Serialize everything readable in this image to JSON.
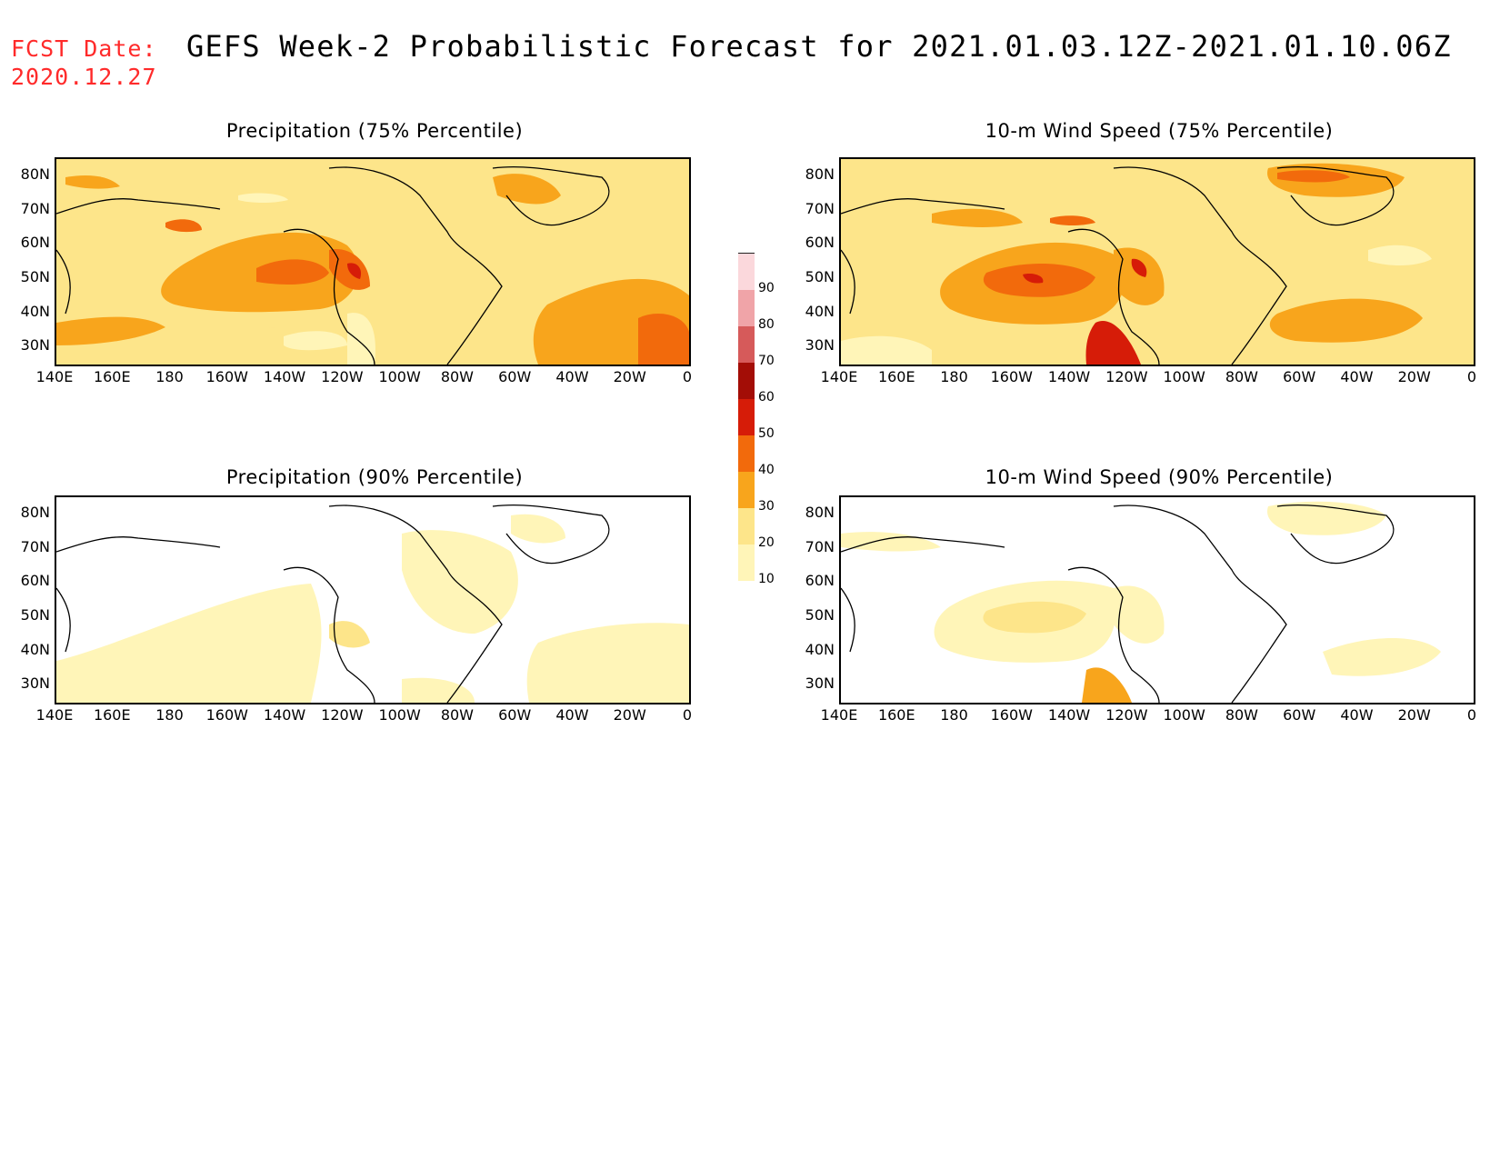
{
  "header": {
    "fcst_label": "FCST Date:",
    "fcst_date": "2020.12.27",
    "title": "GEFS Week-2 Probabilistic Forecast for 2021.01.03.12Z-2021.01.10.06Z"
  },
  "panels": [
    {
      "title": "Precipitation (75% Percentile)"
    },
    {
      "title": "10-m Wind Speed (75% Percentile)"
    },
    {
      "title": "Precipitation (90% Percentile)"
    },
    {
      "title": "10-m Wind Speed (90% Percentile)"
    }
  ],
  "axes": {
    "lat_ticks": [
      "80N",
      "70N",
      "60N",
      "50N",
      "40N",
      "30N"
    ],
    "lon_ticks": [
      "140E",
      "160E",
      "180",
      "160W",
      "140W",
      "120W",
      "100W",
      "80W",
      "60W",
      "40W",
      "20W",
      "0"
    ],
    "lat_range": [
      25,
      85
    ],
    "lon_range": [
      140,
      360
    ]
  },
  "colorbar": {
    "levels": [
      "10",
      "20",
      "30",
      "40",
      "50",
      "60",
      "70",
      "80",
      "90"
    ],
    "colors": [
      "#fff5b8",
      "#fde58a",
      "#f8a51c",
      "#f26a0c",
      "#d61c08",
      "#a30d06",
      "#d65a5a",
      "#f0a4a8",
      "#fbd8dc"
    ]
  },
  "colors": {
    "fcst_text": "#ff2a2a",
    "coast": "#000000"
  }
}
